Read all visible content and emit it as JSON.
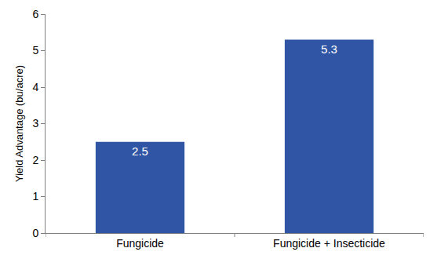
{
  "chart_data": {
    "type": "bar",
    "y_label": "Yield Advantage (bu/acre)",
    "categories": [
      "Fungicide",
      "Fungicide + Insecticide"
    ],
    "values": [
      2.5,
      5.3
    ],
    "color": "#2f55a4",
    "ylim": [
      0,
      6
    ],
    "yticks": [
      0,
      1,
      2,
      3,
      4,
      5,
      6
    ],
    "grid": false,
    "data_labels": true
  }
}
